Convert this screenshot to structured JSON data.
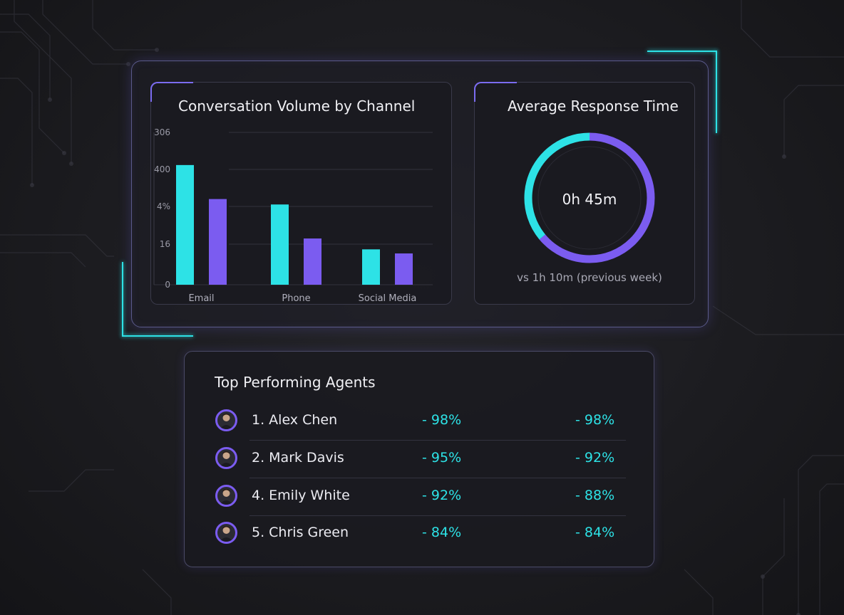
{
  "colors": {
    "accent_cyan": "#2de2e6",
    "accent_purple": "#7b5cf0",
    "background": "#1c1c20",
    "panel": "#1a1a20"
  },
  "volume_card": {
    "title": "Conversation Volume by Channel"
  },
  "response_card": {
    "title": "Average Response Time",
    "value": "0h 45m",
    "comparison": "vs 1h 10m (previous week)",
    "ring_fraction": 0.64
  },
  "chart_data": {
    "type": "bar",
    "categories": [
      "Email",
      "Phone",
      "Social Media"
    ],
    "series": [
      {
        "values": [
          440,
          295,
          130
        ],
        "color": "#2de2e6"
      },
      {
        "values": [
          315,
          170,
          115
        ],
        "color": "#7b5cf0"
      }
    ],
    "y_tick_labels": [
      "0",
      "16",
      "4%",
      "400",
      "306"
    ],
    "ylim": [
      0,
      560
    ],
    "grid": true,
    "legend": "none"
  },
  "agents_card": {
    "title": "Top Performing Agents",
    "agents": [
      {
        "name": "1. Alex Chen",
        "metric_1": "- 98%",
        "metric_2": "- 98%"
      },
      {
        "name": "2. Mark Davis",
        "metric_1": "- 95%",
        "metric_2": "- 92%"
      },
      {
        "name": "4. Emily White",
        "metric_1": "- 92%",
        "metric_2": "- 88%"
      },
      {
        "name": "5. Chris Green",
        "metric_1": "- 84%",
        "metric_2": "- 84%"
      }
    ]
  }
}
